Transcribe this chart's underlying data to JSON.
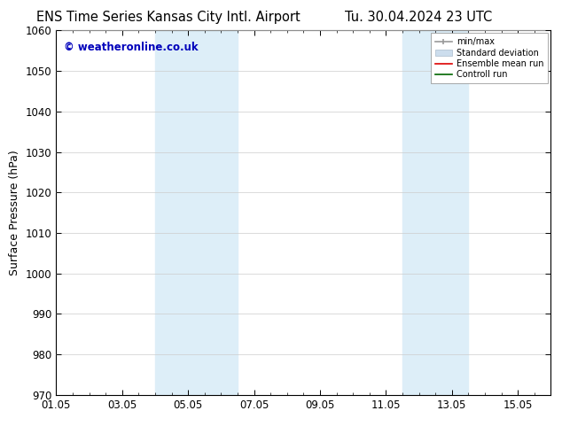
{
  "title_left": "ENS Time Series Kansas City Intl. Airport",
  "title_right": "Tu. 30.04.2024 23 UTC",
  "ylabel": "Surface Pressure (hPa)",
  "ylim": [
    970,
    1060
  ],
  "yticks": [
    970,
    980,
    990,
    1000,
    1010,
    1020,
    1030,
    1040,
    1050,
    1060
  ],
  "xtick_labels": [
    "01.05",
    "03.05",
    "05.05",
    "07.05",
    "09.05",
    "11.05",
    "13.05",
    "15.05"
  ],
  "xtick_positions": [
    0,
    2,
    4,
    6,
    8,
    10,
    12,
    14
  ],
  "xlim": [
    0,
    15
  ],
  "shaded_bands": [
    {
      "x_start": 3.0,
      "x_end": 4.0,
      "color": "#ddeef8"
    },
    {
      "x_start": 4.0,
      "x_end": 5.5,
      "color": "#ddeef8"
    },
    {
      "x_start": 10.5,
      "x_end": 12.0,
      "color": "#ddeef8"
    },
    {
      "x_start": 12.0,
      "x_end": 12.5,
      "color": "#ddeef8"
    }
  ],
  "watermark_text": "© weatheronline.co.uk",
  "watermark_color": "#0000bb",
  "legend_items": [
    {
      "label": "min/max",
      "color": "#aaaaaa"
    },
    {
      "label": "Standard deviation",
      "color": "#ccdded"
    },
    {
      "label": "Ensemble mean run",
      "color": "#ff0000"
    },
    {
      "label": "Controll run",
      "color": "#008800"
    }
  ],
  "background_color": "#ffffff",
  "grid_color": "#cccccc",
  "title_fontsize": 10.5,
  "axis_label_fontsize": 9,
  "tick_fontsize": 8.5,
  "watermark_fontsize": 8.5
}
